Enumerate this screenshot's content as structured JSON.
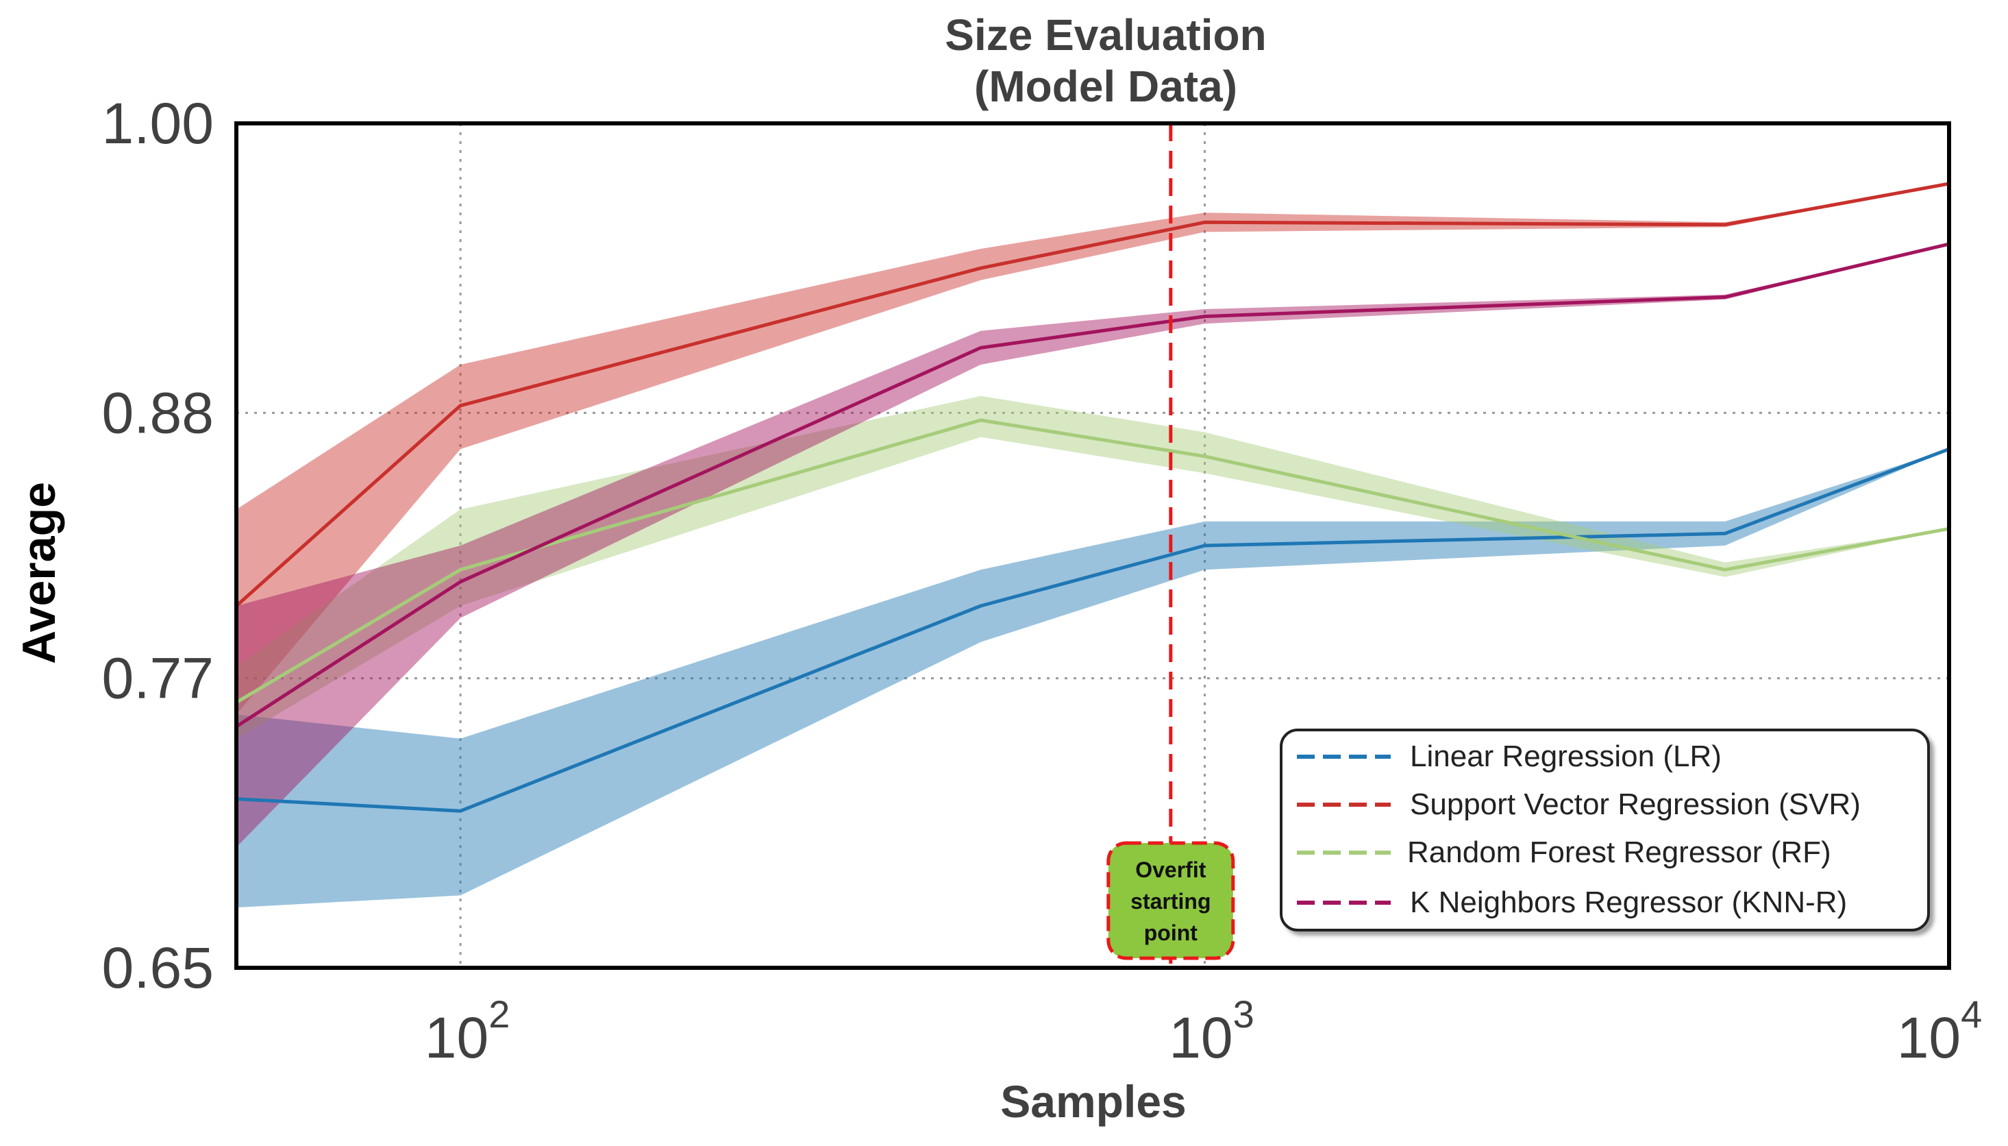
{
  "chart_data": {
    "type": "line",
    "title": "Size Evaluation",
    "subtitle": "(Model Data)",
    "xlabel": "Samples",
    "ylabel": "Average",
    "xscale": "log",
    "xlim": [
      50,
      10000
    ],
    "ylim": [
      0.65,
      1.0
    ],
    "yticks": [
      "1.00",
      "0.88",
      "0.77",
      "0.65"
    ],
    "ytick_values": [
      1.0,
      0.88,
      0.77,
      0.65
    ],
    "xtick_values": [
      100,
      1000,
      10000
    ],
    "xtick_labels": [
      {
        "base": "10",
        "exp": "2"
      },
      {
        "base": "10",
        "exp": "3"
      },
      {
        "base": "10",
        "exp": "4"
      }
    ],
    "grid": true,
    "x": [
      50,
      100,
      500,
      1000,
      5000,
      10000
    ],
    "series": [
      {
        "key": "lr",
        "name": "Linear Regression (LR)",
        "color": "#1f77b4",
        "values": [
          0.72,
          0.715,
          0.8,
          0.825,
          0.83,
          0.865
        ],
        "lower": [
          0.675,
          0.68,
          0.785,
          0.815,
          0.825,
          0.865
        ],
        "upper": [
          0.755,
          0.745,
          0.815,
          0.835,
          0.835,
          0.865
        ]
      },
      {
        "key": "svr",
        "name": "Support Vector Regression (SVR)",
        "color": "#c9302c",
        "values": [
          0.8,
          0.883,
          0.94,
          0.959,
          0.958,
          0.975
        ],
        "lower": [
          0.755,
          0.865,
          0.935,
          0.955,
          0.957,
          0.975
        ],
        "upper": [
          0.84,
          0.9,
          0.948,
          0.963,
          0.959,
          0.975
        ]
      },
      {
        "key": "rf",
        "name": "Random Forest Regressor (RF)",
        "color": "#a6cc7a",
        "values": [
          0.76,
          0.815,
          0.877,
          0.862,
          0.815,
          0.832
        ],
        "lower": [
          0.745,
          0.8,
          0.87,
          0.855,
          0.812,
          0.832
        ],
        "upper": [
          0.775,
          0.84,
          0.887,
          0.872,
          0.818,
          0.832
        ]
      },
      {
        "key": "knn",
        "name": "K Neighbors Regressor (KNN-R)",
        "color": "#a3145e",
        "values": [
          0.75,
          0.81,
          0.907,
          0.92,
          0.928,
          0.95
        ],
        "lower": [
          0.7,
          0.795,
          0.9,
          0.917,
          0.927,
          0.95
        ],
        "upper": [
          0.8,
          0.825,
          0.914,
          0.923,
          0.929,
          0.95
        ]
      }
    ],
    "vline": {
      "x": 900,
      "color": "#e8191b"
    },
    "annotation": {
      "text_lines": [
        "Overfit",
        "starting",
        "point"
      ],
      "x": 900,
      "color": "#8dc63f",
      "border": "#e8191b"
    },
    "legend_position": "bottom-right"
  }
}
